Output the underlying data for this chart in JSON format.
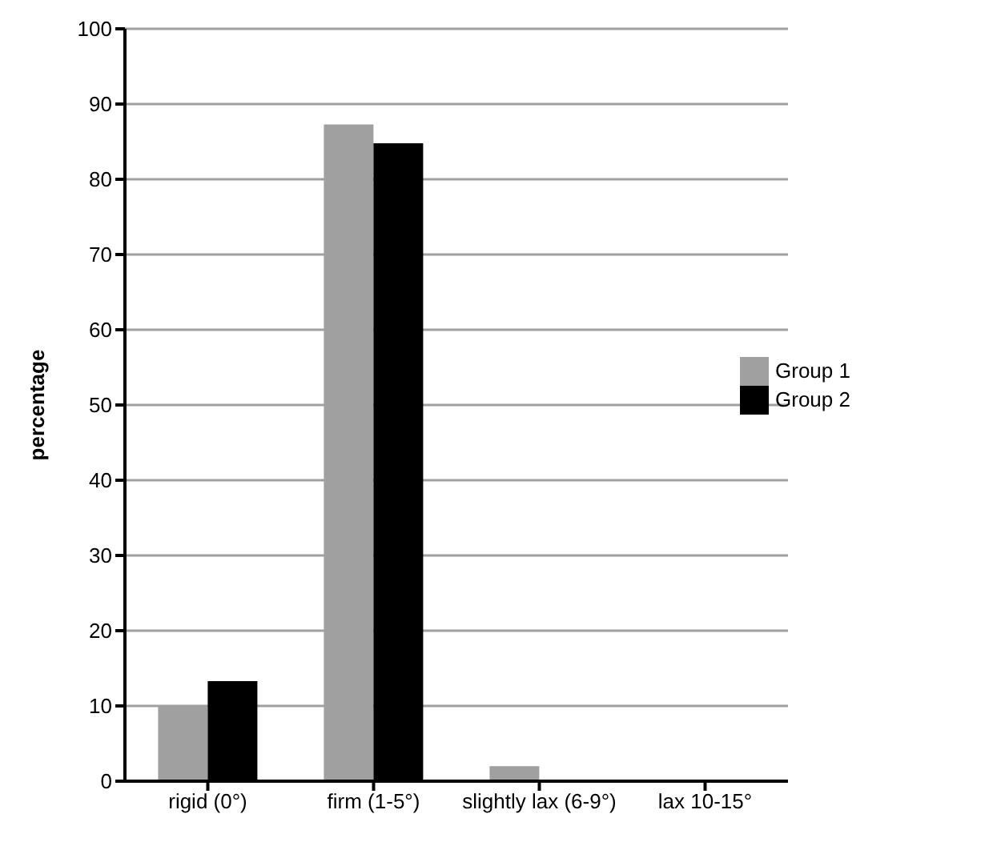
{
  "chart_data": {
    "type": "bar",
    "ylabel": "percentage",
    "categories": [
      "rigid (0°)",
      "firm (1-5°)",
      "slightly lax (6-9°)",
      "lax 10-15°"
    ],
    "series": [
      {
        "name": "Group 1",
        "color": "#a0a0a0",
        "values": [
          10,
          87.3,
          2,
          0
        ]
      },
      {
        "name": "Group 2",
        "color": "#000000",
        "values": [
          13.3,
          84.8,
          0,
          0
        ]
      }
    ],
    "ylim": [
      0,
      100
    ],
    "yticks": [
      0,
      10,
      20,
      30,
      40,
      50,
      60,
      70,
      80,
      90,
      100
    ],
    "grid": "y",
    "legend": "right"
  }
}
